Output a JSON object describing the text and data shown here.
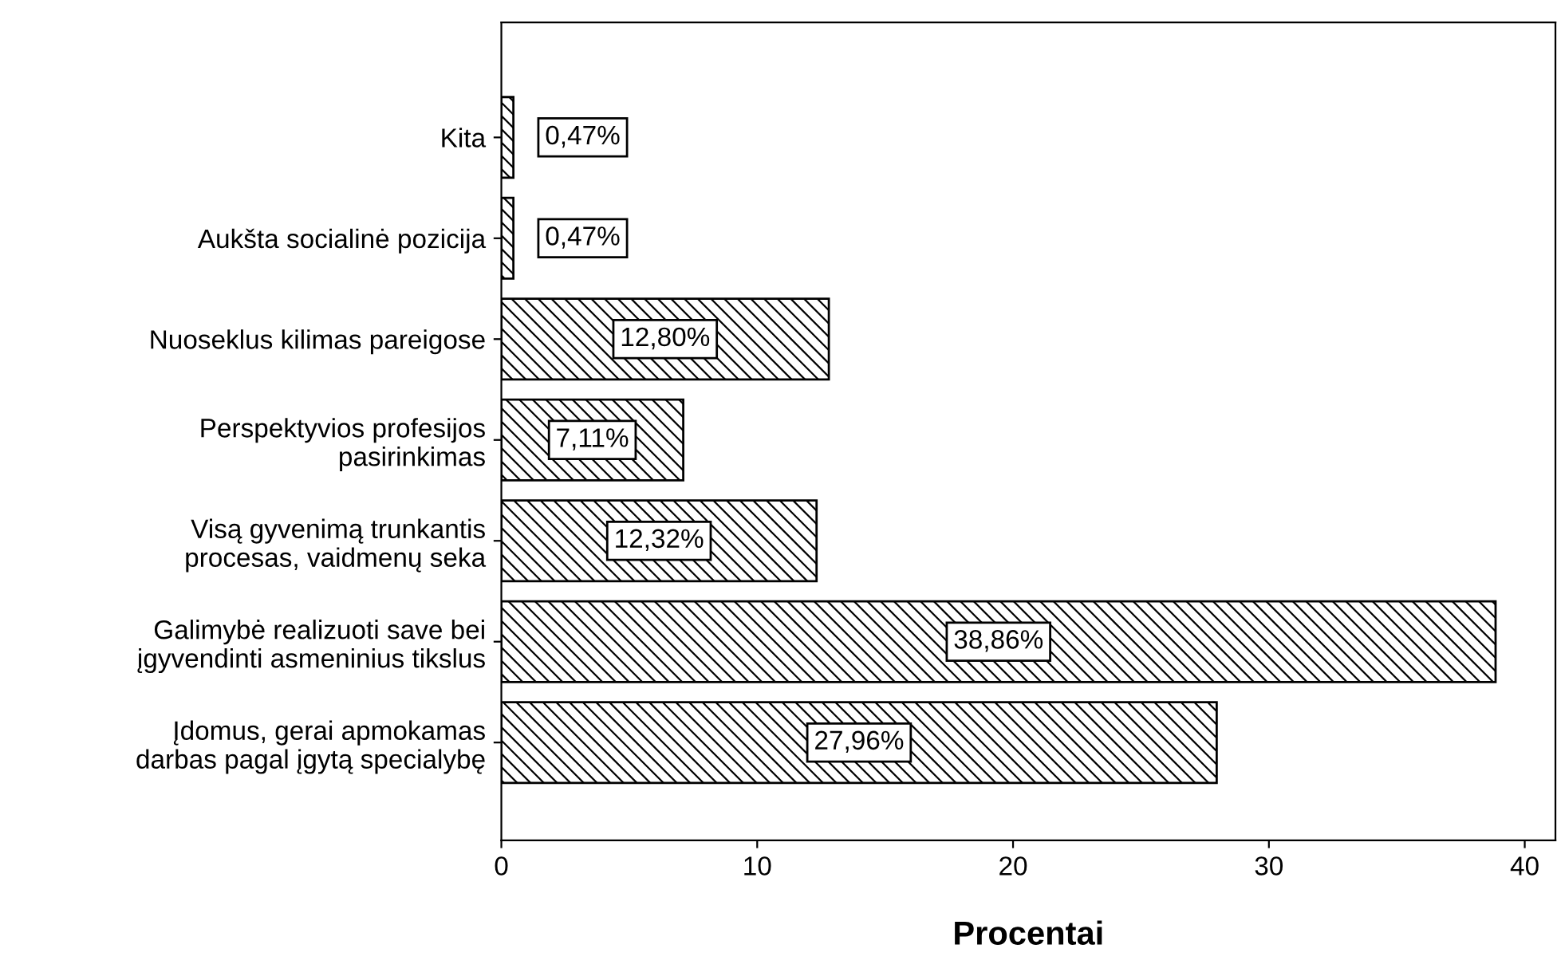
{
  "chart_data": {
    "type": "bar",
    "orientation": "horizontal",
    "xlabel": "Procentai",
    "categories": [
      "Kita",
      "Aukšta socialinė pozicija",
      "Nuoseklus kilimas pareigose",
      "Perspektyvios profesijos\npasirinkimas",
      "Visą gyvenimą trunkantis\nprocesas, vaidmenų seka",
      "Galimybė realizuoti save bei\nįgyvendinti asmeninius tikslus",
      "Įdomus, gerai apmokamas\ndarbas pagal įgytą specialybę"
    ],
    "values": [
      0.47,
      0.47,
      12.8,
      7.11,
      12.32,
      38.86,
      27.96
    ],
    "value_labels": [
      "0,47%",
      "0,47%",
      "12,80%",
      "7,11%",
      "12,32%",
      "38,86%",
      "27,96%"
    ],
    "xlim": [
      0,
      41.2
    ],
    "xticks": [
      0,
      10,
      20,
      30,
      40
    ],
    "grid": false,
    "legend": false
  }
}
